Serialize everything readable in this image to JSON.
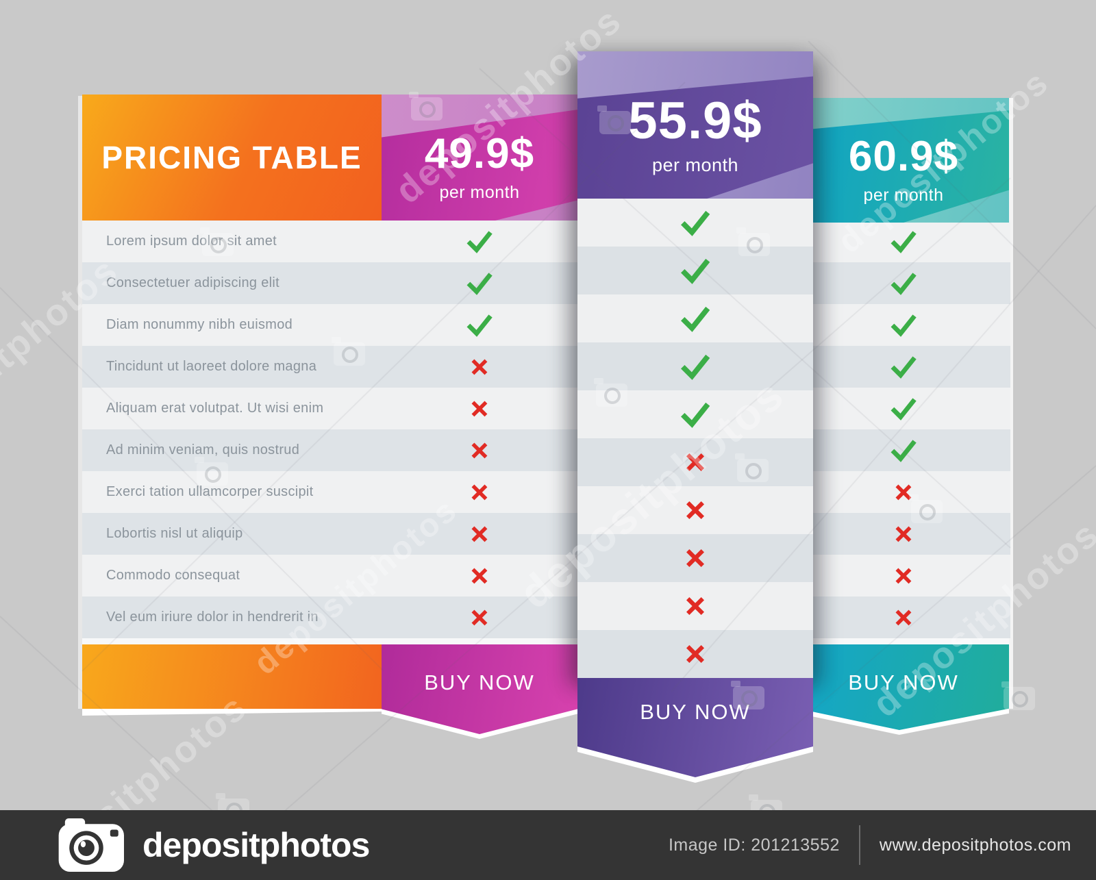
{
  "watermark": {
    "text": "depositphotos"
  },
  "bottom_bar": {
    "brand": "depositphotos",
    "image_id": "Image ID: 201213552",
    "website": "www.depositphotos.com"
  },
  "table": {
    "title": "PRICING TABLE",
    "features": [
      "Lorem ipsum dolor sit amet",
      "Consectetuer adipiscing elit",
      "Diam nonummy nibh euismod",
      "Tincidunt ut laoreet dolore magna",
      "Aliquam erat volutpat. Ut wisi enim",
      "Ad minim veniam, quis nostrud",
      "Exerci tation ullamcorper suscipit",
      "Lobortis nisl ut aliquip",
      "Commodo consequat",
      "Vel eum iriure dolor in hendrerit in"
    ],
    "colors": {
      "check": "#3bae47",
      "cross": "#e12b24",
      "orange": "#f2641f",
      "pink": "#c42da3",
      "purple": "#5b4295",
      "teal": "#1aa8bd"
    },
    "plans": [
      {
        "price": "49.9$",
        "period": "per month",
        "cta": "BUY NOW",
        "marks": [
          true,
          true,
          true,
          false,
          false,
          false,
          false,
          false,
          false,
          false
        ]
      },
      {
        "price": "55.9$",
        "period": "per month",
        "cta": "BUY NOW",
        "marks": [
          true,
          true,
          true,
          true,
          true,
          false,
          false,
          false,
          false,
          false
        ]
      },
      {
        "price": "60.9$",
        "period": "per month",
        "cta": "BUY NOW",
        "marks": [
          true,
          true,
          true,
          true,
          true,
          true,
          false,
          false,
          false,
          false
        ]
      }
    ]
  }
}
